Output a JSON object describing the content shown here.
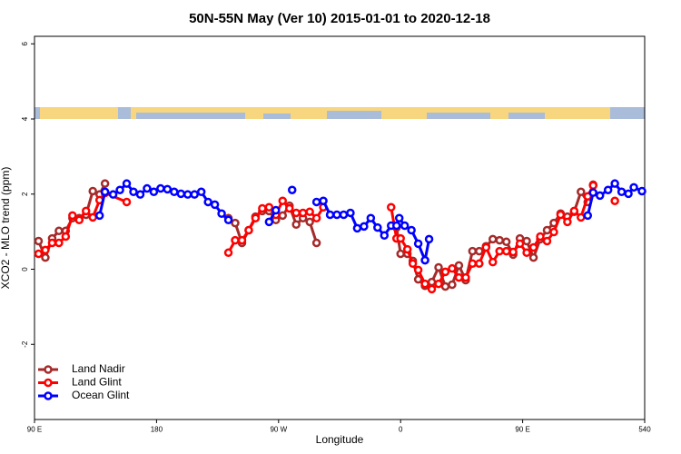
{
  "chart_data": {
    "type": "line",
    "title": "50N-55N May (Ver 10)   2015-01-01 to 2020-12-18",
    "x_label": "Longitude",
    "y_label": "XCO2 - MLO trend (ppm)",
    "xlim": [
      90,
      540
    ],
    "ylim": [
      -4,
      6.2
    ],
    "xticks": [
      {
        "value": 90,
        "label": "90 E"
      },
      180,
      {
        "value": 270,
        "label": "90 W"
      },
      {
        "value": 360,
        "label": "0"
      },
      {
        "value": 450,
        "label": "90 E"
      },
      540
    ],
    "yticks": [
      -2,
      0,
      2,
      4,
      6
    ],
    "legend": "bottom-left",
    "series": [
      {
        "name": "Land Nadir",
        "color": "#A52A2A",
        "x": [
          93,
          98,
          103,
          108,
          113,
          118,
          123,
          128,
          133,
          138,
          142,
          188,
          233,
          238,
          243,
          248,
          253,
          258,
          263,
          268,
          273,
          278,
          283,
          288,
          293,
          298,
          328,
          357,
          360,
          365,
          369,
          373,
          378,
          383,
          388,
          393,
          398,
          403,
          408,
          413,
          418,
          423,
          428,
          433,
          438,
          443,
          448,
          453,
          458,
          463,
          468,
          473,
          478,
          483,
          488,
          493,
          498,
          502
        ],
        "values": [
          0.75,
          0.31,
          0.82,
          1.02,
          1.02,
          1.36,
          1.36,
          1.45,
          2.08,
          1.99,
          2.28,
          null,
          1.36,
          1.23,
          0.7,
          1.04,
          1.4,
          1.55,
          1.55,
          1.31,
          1.43,
          1.69,
          1.19,
          1.36,
          1.26,
          0.7,
          null,
          1.11,
          0.41,
          0.41,
          0.22,
          -0.27,
          -0.44,
          -0.34,
          0.05,
          -0.46,
          -0.41,
          0.1,
          -0.29,
          0.48,
          0.48,
          0.61,
          0.8,
          0.77,
          0.73,
          0.39,
          0.82,
          0.75,
          0.31,
          0.8,
          1.04,
          1.23,
          1.48,
          1.4,
          1.53,
          2.06,
          1.79,
          2.25
        ]
      },
      {
        "name": "Land Glint",
        "color": "#FF0000",
        "x": [
          93,
          98,
          103,
          108,
          113,
          118,
          123,
          128,
          133,
          138,
          142,
          158,
          188,
          233,
          238,
          243,
          248,
          253,
          258,
          263,
          268,
          273,
          278,
          283,
          288,
          293,
          298,
          303,
          328,
          353,
          357,
          360,
          365,
          369,
          373,
          378,
          383,
          388,
          393,
          398,
          403,
          408,
          413,
          418,
          423,
          428,
          433,
          438,
          443,
          448,
          453,
          458,
          463,
          468,
          473,
          478,
          483,
          488,
          493,
          498,
          502,
          510,
          518
        ],
        "values": [
          0.41,
          0.51,
          0.7,
          0.7,
          0.87,
          1.43,
          1.31,
          1.55,
          1.38,
          1.84,
          2.03,
          1.79,
          null,
          0.44,
          0.77,
          0.77,
          1.04,
          1.36,
          1.62,
          1.65,
          1.45,
          1.82,
          1.62,
          1.5,
          1.5,
          1.53,
          1.36,
          1.65,
          null,
          1.65,
          0.82,
          0.82,
          0.53,
          0.15,
          -0.02,
          -0.39,
          -0.53,
          -0.39,
          -0.07,
          0.02,
          -0.22,
          -0.22,
          0.15,
          0.15,
          0.58,
          0.19,
          0.48,
          0.48,
          0.46,
          0.68,
          0.44,
          0.58,
          0.87,
          0.75,
          0.99,
          1.45,
          1.26,
          1.55,
          1.38,
          1.94,
          2.23,
          null,
          1.82
        ]
      },
      {
        "name": "Ocean Glint",
        "color": "#0000FF",
        "x": [
          138,
          142,
          148,
          153,
          158,
          163,
          168,
          173,
          178,
          183,
          188,
          193,
          198,
          203,
          208,
          213,
          218,
          223,
          228,
          233,
          248,
          263,
          268,
          273,
          280,
          290,
          298,
          303,
          308,
          313,
          318,
          323,
          328,
          333,
          338,
          343,
          348,
          353,
          357,
          359,
          363,
          368,
          373,
          378,
          381,
          450,
          498,
          502,
          507,
          513,
          518,
          523,
          528,
          532,
          538
        ],
        "values": [
          1.43,
          2.06,
          1.99,
          2.11,
          2.28,
          2.06,
          1.99,
          2.15,
          2.06,
          2.15,
          2.13,
          2.06,
          2.01,
          1.99,
          1.99,
          2.06,
          1.79,
          1.72,
          1.48,
          1.31,
          null,
          1.26,
          1.57,
          null,
          2.11,
          null,
          1.79,
          1.82,
          1.45,
          1.45,
          1.45,
          1.5,
          1.09,
          1.14,
          1.36,
          1.11,
          0.9,
          1.16,
          1.16,
          1.36,
          1.16,
          1.04,
          0.68,
          0.24,
          0.8,
          null,
          1.43,
          2.04,
          1.96,
          2.11,
          2.28,
          2.06,
          2.01,
          2.18,
          2.08
        ]
      }
    ]
  }
}
